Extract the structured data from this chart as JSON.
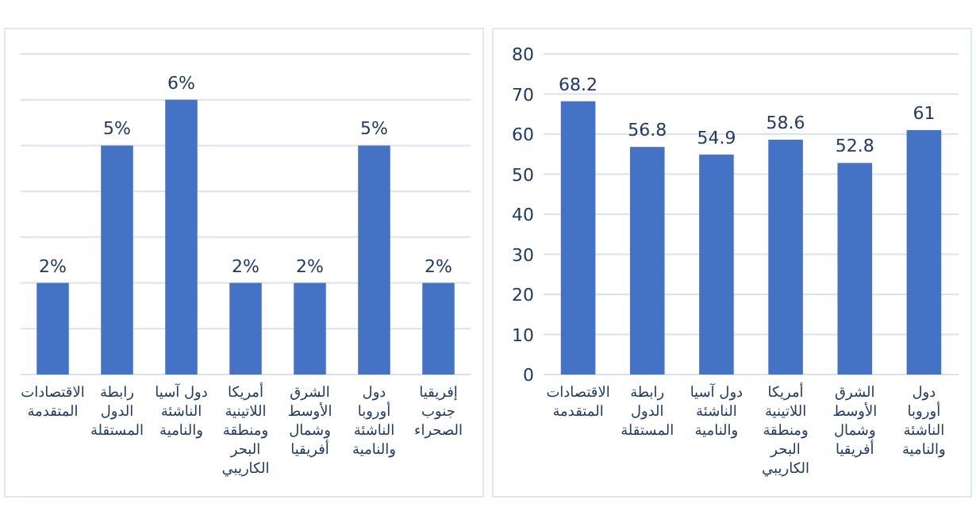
{
  "chart_data": [
    {
      "type": "bar",
      "categories": [
        "الاقتصادات المتقدمة",
        "رابطة الدول المستقلة",
        "دول آسيا الناشئة والنامية",
        "أمريكا اللاتينية ومنطقة البحر الكاريبي",
        "الشرق الأوسط وشمال أفريقيا",
        "دول أوروبا الناشئة والنامية",
        "إفريقيا جنوب الصحراء"
      ],
      "values": [
        2,
        5,
        6,
        2,
        2,
        5,
        2
      ],
      "value_labels": [
        "2%",
        "5%",
        "6%",
        "2%",
        "2%",
        "5%",
        "2%"
      ],
      "color": "#4472c4",
      "ylim": [
        0,
        7
      ],
      "yticks": [
        {
          "value": 0,
          "label": null
        },
        {
          "value": 1,
          "label": null
        },
        {
          "value": 2,
          "label": null
        },
        {
          "value": 3,
          "label": null
        },
        {
          "value": 4,
          "label": null
        },
        {
          "value": 5,
          "label": null
        },
        {
          "value": 6,
          "label": null
        },
        {
          "value": 7,
          "label": null
        }
      ],
      "grid": "y",
      "tick_labels": "x"
    },
    {
      "type": "bar",
      "categories": [
        "الاقتصادات المتقدمة",
        "رابطة الدول المستقلة",
        "دول آسيا الناشئة والنامية",
        "أمريكا اللاتينية ومنطقة البحر الكاريبي",
        "الشرق الأوسط وشمال أفريقيا",
        "دول أوروبا الناشئة والنامية"
      ],
      "values": [
        68.2,
        56.8,
        54.9,
        58.6,
        52.8,
        61
      ],
      "color": "#4472c4",
      "ylim": [
        0,
        80
      ],
      "yticks": [
        0,
        10,
        20,
        30,
        40,
        50,
        60,
        70,
        80
      ],
      "grid": "y",
      "data_labels": true
    }
  ]
}
